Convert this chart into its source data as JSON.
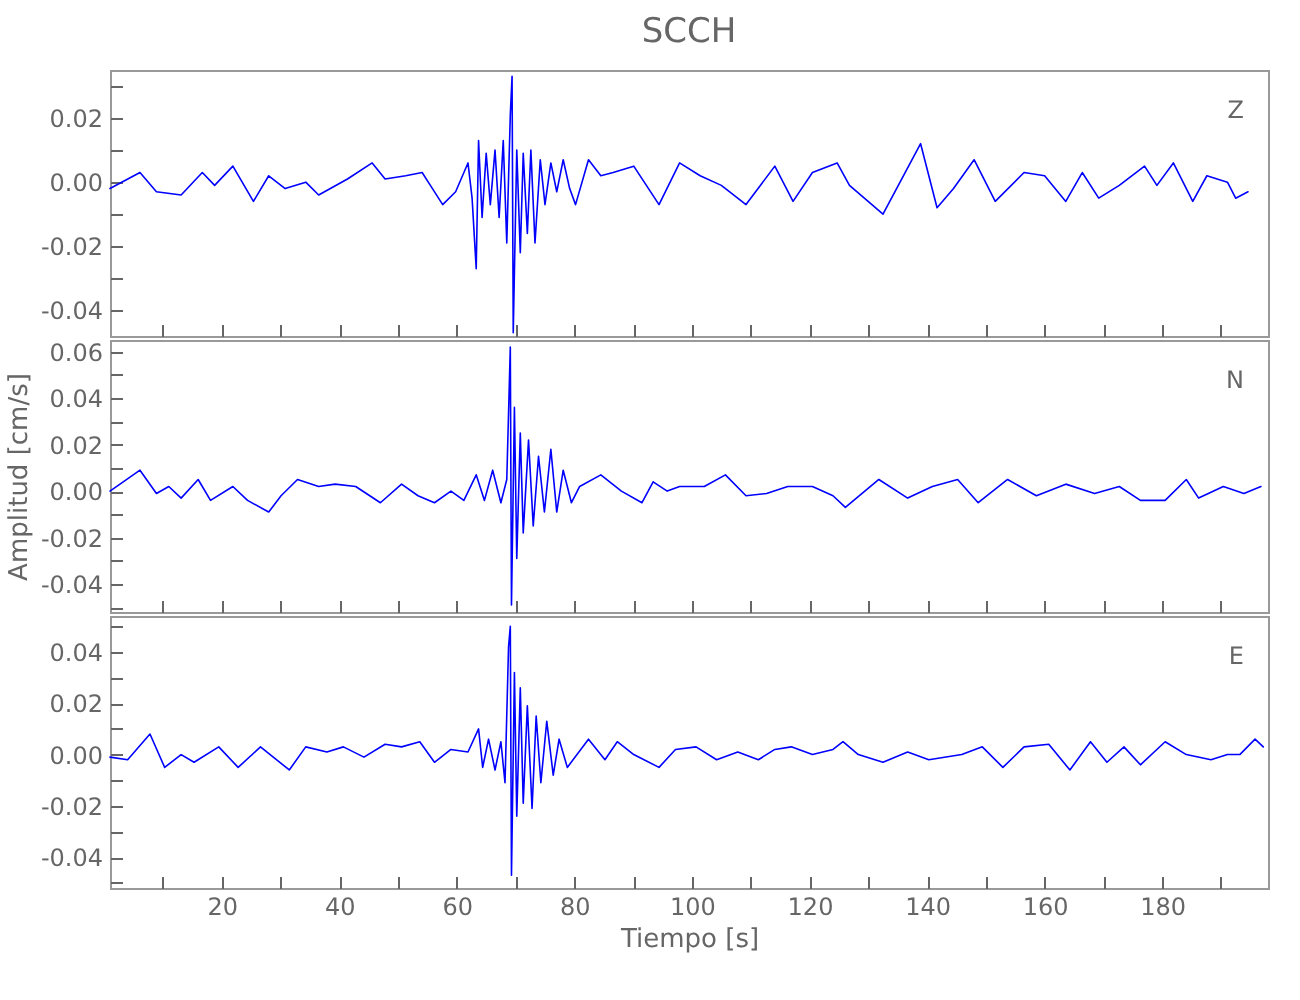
{
  "chart_data": [
    {
      "type": "line",
      "title": "SCCH",
      "annotations": [
        "Z"
      ],
      "tick_labels": "y",
      "xlim": [
        1,
        198
      ],
      "ylim": [
        -0.048,
        0.035
      ],
      "xticks": [
        {
          "value": 10,
          "label": null
        },
        20,
        {
          "value": 30,
          "label": null
        },
        40,
        {
          "value": 50,
          "label": null
        },
        60,
        {
          "value": 70,
          "label": null
        },
        80,
        {
          "value": 90,
          "label": null
        },
        100,
        {
          "value": 110,
          "label": null
        },
        120,
        {
          "value": 130,
          "label": null
        },
        140,
        {
          "value": 150,
          "label": null
        },
        160,
        {
          "value": 170,
          "label": null
        },
        180,
        {
          "value": 190,
          "label": null
        }
      ],
      "yticks": [
        -0.04,
        {
          "value": -0.03,
          "label": null
        },
        -0.02,
        {
          "value": -0.01,
          "label": null
        },
        {
          "value": 0,
          "label": "0.00"
        },
        {
          "value": 0.01,
          "label": null
        },
        0.02,
        {
          "value": 0.03,
          "label": null
        }
      ],
      "x": [
        1.0,
        6.1,
        8.9,
        13.1,
        16.7,
        18.8,
        21.9,
        25.4,
        28.0,
        30.8,
        34.3,
        36.5,
        41.4,
        45.6,
        47.8,
        51.3,
        54.1,
        55.5,
        57.6,
        59.8,
        61.9,
        62.6,
        63.3,
        63.7,
        64.3,
        65.0,
        65.7,
        66.5,
        67.2,
        67.9,
        68.5,
        69.1,
        69.4,
        69.6,
        70.2,
        70.8,
        71.3,
        72.0,
        72.6,
        73.3,
        74.2,
        75.0,
        76.0,
        77.0,
        78.1,
        79.2,
        80.2,
        82.4,
        84.5,
        86.6,
        90.1,
        94.4,
        97.9,
        101.4,
        105.0,
        109.2,
        114.1,
        117.2,
        120.5,
        124.7,
        126.8,
        132.5,
        138.9,
        141.7,
        144.5,
        148.0,
        151.6,
        156.5,
        160.0,
        163.6,
        166.4,
        169.2,
        172.7,
        177.0,
        179.1,
        181.9,
        185.2,
        187.6,
        191.1,
        192.5,
        194.6
      ],
      "series": [
        {
          "color": "#0000ff",
          "values": [
            -0.002,
            0.003,
            -0.003,
            -0.004,
            0.003,
            -0.001,
            0.005,
            -0.006,
            0.002,
            -0.002,
            0.0,
            -0.004,
            0.001,
            0.006,
            0.001,
            0.002,
            0.003,
            -0.001,
            -0.007,
            -0.003,
            0.006,
            -0.005,
            -0.027,
            0.013,
            -0.011,
            0.009,
            -0.007,
            0.01,
            -0.011,
            0.013,
            -0.019,
            0.021,
            0.033,
            -0.047,
            0.01,
            -0.022,
            0.009,
            -0.016,
            0.01,
            -0.019,
            0.007,
            -0.007,
            0.006,
            -0.003,
            0.007,
            -0.002,
            -0.007,
            0.007,
            0.002,
            0.003,
            0.005,
            -0.007,
            0.006,
            0.002,
            -0.001,
            -0.007,
            0.005,
            -0.006,
            0.003,
            0.006,
            -0.001,
            -0.01,
            0.012,
            -0.008,
            -0.002,
            0.007,
            -0.006,
            0.003,
            0.002,
            -0.006,
            0.003,
            -0.005,
            -0.001,
            0.005,
            -0.001,
            0.006,
            -0.006,
            0.002,
            0.0,
            -0.005,
            -0.003
          ]
        }
      ]
    },
    {
      "type": "line",
      "ylabel": "Amplitud [cm/s]",
      "annotations": [
        "N"
      ],
      "tick_labels": "y",
      "xlim": [
        1,
        198
      ],
      "ylim": [
        -0.052,
        0.065
      ],
      "xticks": [
        {
          "value": 10,
          "label": null
        },
        20,
        {
          "value": 30,
          "label": null
        },
        40,
        {
          "value": 50,
          "label": null
        },
        60,
        {
          "value": 70,
          "label": null
        },
        80,
        {
          "value": 90,
          "label": null
        },
        100,
        {
          "value": 110,
          "label": null
        },
        120,
        {
          "value": 130,
          "label": null
        },
        140,
        {
          "value": 150,
          "label": null
        },
        160,
        {
          "value": 170,
          "label": null
        },
        180,
        {
          "value": 190,
          "label": null
        }
      ],
      "yticks": [
        {
          "value": -0.05,
          "label": null
        },
        -0.04,
        {
          "value": -0.03,
          "label": null
        },
        -0.02,
        {
          "value": -0.01,
          "label": null
        },
        {
          "value": 0,
          "label": "0.00"
        },
        {
          "value": 0.01,
          "label": null
        },
        0.02,
        {
          "value": 0.03,
          "label": null
        },
        0.04,
        {
          "value": 0.05,
          "label": null
        },
        0.06
      ],
      "x": [
        1.0,
        6.1,
        8.9,
        11.0,
        13.1,
        16.0,
        18.1,
        21.9,
        24.4,
        28.0,
        30.1,
        32.9,
        36.5,
        39.3,
        42.8,
        47.0,
        50.6,
        53.4,
        56.2,
        59.0,
        61.2,
        63.3,
        64.7,
        66.1,
        67.5,
        68.5,
        69.1,
        69.3,
        69.8,
        70.2,
        70.8,
        71.3,
        72.2,
        73.0,
        73.9,
        74.9,
        76.0,
        77.0,
        78.1,
        79.5,
        80.9,
        84.5,
        88.0,
        91.5,
        93.4,
        95.8,
        97.9,
        102.1,
        105.7,
        109.2,
        112.7,
        116.3,
        120.5,
        124.0,
        126.1,
        131.8,
        136.7,
        140.9,
        145.2,
        148.7,
        153.7,
        158.6,
        163.6,
        168.5,
        172.7,
        176.3,
        180.5,
        184.1,
        186.2,
        190.4,
        193.9,
        196.8
      ],
      "series": [
        {
          "color": "#0000ff",
          "values": [
            0.0,
            0.009,
            -0.001,
            0.002,
            -0.003,
            0.005,
            -0.004,
            0.002,
            -0.004,
            -0.009,
            -0.002,
            0.005,
            0.002,
            0.003,
            0.002,
            -0.005,
            0.003,
            -0.002,
            -0.005,
            0.0,
            -0.004,
            0.007,
            -0.004,
            0.009,
            -0.005,
            0.005,
            0.062,
            -0.049,
            0.036,
            -0.029,
            0.025,
            -0.018,
            0.022,
            -0.015,
            0.015,
            -0.009,
            0.018,
            -0.009,
            0.009,
            -0.005,
            0.002,
            0.007,
            0.0,
            -0.005,
            0.004,
            0.0,
            0.002,
            0.002,
            0.007,
            -0.002,
            -0.001,
            0.002,
            0.002,
            -0.002,
            -0.007,
            0.005,
            -0.003,
            0.002,
            0.005,
            -0.005,
            0.005,
            -0.002,
            0.003,
            -0.001,
            0.002,
            -0.004,
            -0.004,
            0.005,
            -0.003,
            0.002,
            -0.001,
            0.002
          ]
        }
      ]
    },
    {
      "type": "line",
      "xlabel": "Tiempo [s]",
      "annotations": [
        "E"
      ],
      "xlim": [
        1,
        198
      ],
      "ylim": [
        -0.052,
        0.054
      ],
      "xticks": [
        {
          "value": 10,
          "label": null
        },
        20,
        {
          "value": 30,
          "label": null
        },
        40,
        {
          "value": 50,
          "label": null
        },
        60,
        {
          "value": 70,
          "label": null
        },
        80,
        {
          "value": 90,
          "label": null
        },
        100,
        {
          "value": 110,
          "label": null
        },
        120,
        {
          "value": 130,
          "label": null
        },
        140,
        {
          "value": 150,
          "label": null
        },
        160,
        {
          "value": 170,
          "label": null
        },
        180,
        {
          "value": 190,
          "label": null
        }
      ],
      "yticks": [
        {
          "value": -0.05,
          "label": null
        },
        -0.04,
        {
          "value": -0.03,
          "label": null
        },
        -0.02,
        {
          "value": -0.01,
          "label": null
        },
        {
          "value": 0,
          "label": "0.00"
        },
        {
          "value": 0.01,
          "label": null
        },
        0.02,
        {
          "value": 0.03,
          "label": null
        },
        0.04,
        {
          "value": 0.05,
          "label": null
        }
      ],
      "x": [
        1.0,
        4.0,
        7.8,
        10.3,
        13.1,
        15.3,
        19.5,
        22.8,
        26.6,
        31.5,
        34.3,
        37.9,
        40.7,
        44.2,
        47.8,
        50.6,
        53.7,
        56.2,
        59.0,
        61.9,
        63.7,
        64.4,
        65.4,
        66.5,
        67.5,
        68.2,
        68.8,
        69.1,
        69.3,
        69.8,
        70.2,
        70.8,
        71.3,
        72.0,
        72.8,
        73.5,
        74.3,
        75.3,
        76.4,
        77.4,
        78.8,
        82.4,
        85.2,
        87.3,
        90.1,
        94.4,
        97.2,
        100.7,
        104.2,
        107.8,
        111.3,
        114.1,
        116.9,
        120.5,
        124.0,
        125.7,
        128.3,
        132.5,
        136.7,
        140.3,
        145.9,
        149.4,
        152.9,
        156.5,
        160.7,
        164.3,
        167.8,
        170.6,
        173.5,
        176.3,
        180.5,
        184.1,
        188.3,
        191.1,
        193.2,
        195.8,
        197.2
      ],
      "series": [
        {
          "color": "#0000ff",
          "values": [
            -0.001,
            -0.002,
            0.008,
            -0.005,
            0.0,
            -0.003,
            0.003,
            -0.005,
            0.003,
            -0.006,
            0.003,
            0.001,
            0.003,
            -0.001,
            0.004,
            0.003,
            0.005,
            -0.003,
            0.002,
            0.001,
            0.01,
            -0.005,
            0.006,
            -0.006,
            0.005,
            -0.011,
            0.042,
            0.05,
            -0.047,
            0.032,
            -0.024,
            0.026,
            -0.019,
            0.019,
            -0.021,
            0.015,
            -0.011,
            0.013,
            -0.008,
            0.006,
            -0.005,
            0.006,
            -0.002,
            0.005,
            0.0,
            -0.005,
            0.002,
            0.003,
            -0.002,
            0.001,
            -0.002,
            0.002,
            0.003,
            0.0,
            0.002,
            0.005,
            0.0,
            -0.003,
            0.001,
            -0.002,
            0.0,
            0.003,
            -0.005,
            0.003,
            0.004,
            -0.006,
            0.005,
            -0.003,
            0.003,
            -0.004,
            0.005,
            0.0,
            -0.002,
            0.0,
            0.0,
            0.006,
            0.003
          ]
        }
      ]
    }
  ]
}
